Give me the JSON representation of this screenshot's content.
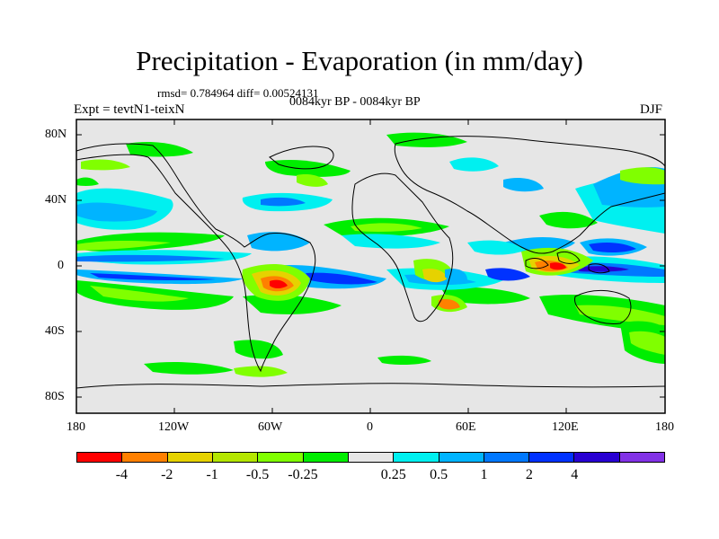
{
  "title": "Precipitation - Evaporation (in mm/day)",
  "stats_text": "rmsd= 0.784964 diff= 0.00524131",
  "period_text": "0084kyr BP - 0084kyr BP",
  "experiment_text": "Expt = tevtN1-teixN",
  "season": "DJF",
  "lat_labels": [
    "80N",
    "40N",
    "0",
    "40S",
    "80S"
  ],
  "lon_labels": [
    "180",
    "120W",
    "60W",
    "0",
    "60E",
    "120E",
    "180"
  ],
  "colorbar": {
    "colors": [
      "#ff0000",
      "#ff8000",
      "#e6d200",
      "#b4e600",
      "#80ff00",
      "#00ee00",
      "#e6e6e6",
      "#00f0f0",
      "#00b4ff",
      "#0078ff",
      "#0032ff",
      "#2800d2",
      "#8232e6"
    ],
    "labels": [
      "-4",
      "-2",
      "-1",
      "-0.5",
      "-0.25",
      "0.25",
      "0.5",
      "1",
      "2",
      "4"
    ]
  },
  "colors": {
    "land_ocean_background": "#e6e6e6",
    "coastline": "#000000"
  }
}
